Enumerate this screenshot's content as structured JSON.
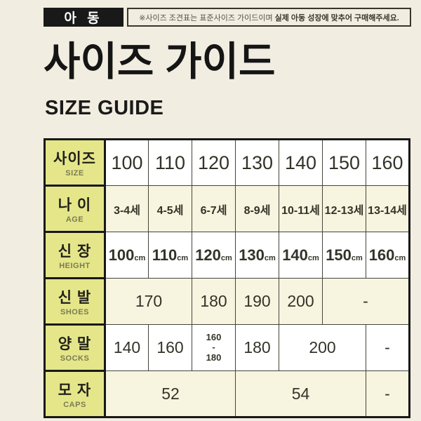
{
  "top_bar": {
    "category_label": "아 동",
    "notice_normal": "※사이즈 조견표는 표준사이즈 가이드이며",
    "notice_bold": "실제 아동 성장에 맞추어 구매해주세요."
  },
  "title": {
    "main": "사이즈 가이드",
    "sub": "SIZE GUIDE"
  },
  "colors": {
    "page_background": "#f1ede0",
    "bar_black": "#191919",
    "header_cell": "#e5e68a",
    "row_cream": "#f7f4df",
    "row_white": "#ffffff",
    "table_border": "#181818"
  },
  "table": {
    "rows": {
      "size": {
        "ko": "사이즈",
        "en": "SIZE",
        "v": [
          "100",
          "110",
          "120",
          "130",
          "140",
          "150",
          "160"
        ]
      },
      "age": {
        "ko": "나 이",
        "en": "AGE",
        "v": [
          "3-4세",
          "4-5세",
          "6-7세",
          "8-9세",
          "10-11세",
          "12-13세",
          "13-14세"
        ]
      },
      "height": {
        "ko": "신 장",
        "en": "HEIGHT",
        "v": [
          "100",
          "110",
          "120",
          "130",
          "140",
          "150",
          "160"
        ],
        "unit": "cm"
      },
      "shoes": {
        "ko": "신 발",
        "en": "SHOES",
        "v100_110": "170",
        "v120": "180",
        "v130": "190",
        "v140": "200",
        "v150_160": "-"
      },
      "socks": {
        "ko": "양 말",
        "en": "SOCKS",
        "v100": "140",
        "v110": "160",
        "v120": [
          "160",
          "-",
          "180"
        ],
        "v130": "180",
        "v140_150": "200",
        "v160": "-"
      },
      "caps": {
        "ko": "모 자",
        "en": "CAPS",
        "v100_120": "52",
        "v130_150": "54",
        "v160": "-"
      }
    }
  }
}
